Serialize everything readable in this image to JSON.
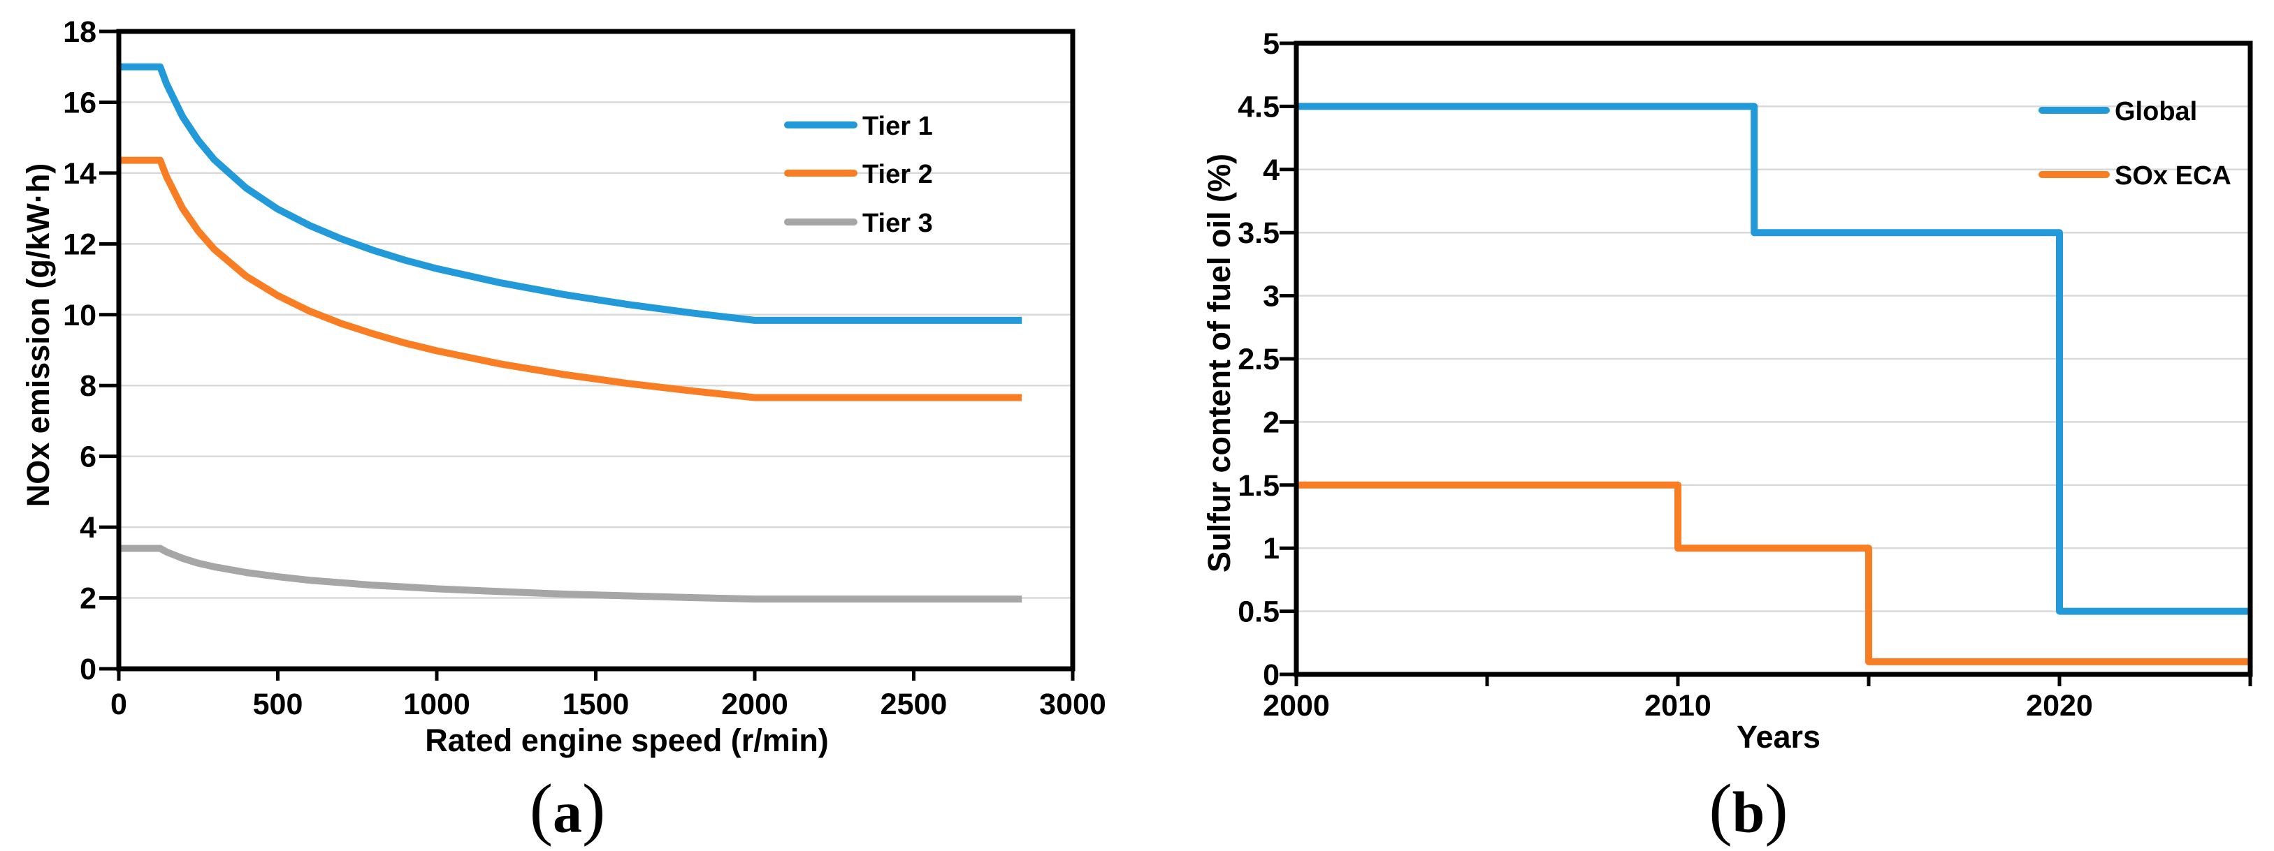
{
  "colors": {
    "blue": "#2299D8",
    "orange": "#F97E23",
    "gray": "#A6A6A6",
    "grid": "#D9D9D9",
    "axis": "#000000"
  },
  "panel_a": {
    "caption_open": "(",
    "caption_letter": "a",
    "caption_close": ")"
  },
  "panel_b": {
    "caption_open": "(",
    "caption_letter": "b",
    "caption_close": ")"
  },
  "chart_data": [
    {
      "id": "nox-emission-tiers",
      "type": "line",
      "title": "",
      "xlabel": "Rated engine speed (r/min)",
      "ylabel": "NOx emission (g/kW·h)",
      "xlim": [
        0,
        3000
      ],
      "ylim": [
        0,
        18
      ],
      "xticks": [
        0,
        500,
        1000,
        1500,
        2000,
        2500,
        3000
      ],
      "yticks": [
        0,
        2,
        4,
        6,
        8,
        10,
        12,
        14,
        16,
        18
      ],
      "grid": "horizontal",
      "legend_position": "inside upper right",
      "series": [
        {
          "name": "Tier 1",
          "color": "#2299D8",
          "points": [
            [
              0,
              17
            ],
            [
              130,
              17
            ],
            [
              150,
              16.52
            ],
            [
              200,
              15.6
            ],
            [
              250,
              14.92
            ],
            [
              300,
              14.38
            ],
            [
              400,
              13.58
            ],
            [
              500,
              12.98
            ],
            [
              600,
              12.52
            ],
            [
              700,
              12.14
            ],
            [
              800,
              11.82
            ],
            [
              900,
              11.54
            ],
            [
              1000,
              11.3
            ],
            [
              1200,
              10.9
            ],
            [
              1400,
              10.57
            ],
            [
              1600,
              10.29
            ],
            [
              1800,
              10.05
            ],
            [
              2000,
              9.84
            ],
            [
              2840,
              9.84
            ]
          ]
        },
        {
          "name": "Tier 2",
          "color": "#F97E23",
          "points": [
            [
              0,
              14.36
            ],
            [
              130,
              14.36
            ],
            [
              150,
              13.9
            ],
            [
              200,
              13.01
            ],
            [
              250,
              12.36
            ],
            [
              300,
              11.85
            ],
            [
              400,
              11.09
            ],
            [
              500,
              10.54
            ],
            [
              600,
              10.1
            ],
            [
              700,
              9.75
            ],
            [
              800,
              9.46
            ],
            [
              900,
              9.2
            ],
            [
              1000,
              8.98
            ],
            [
              1200,
              8.61
            ],
            [
              1400,
              8.31
            ],
            [
              1600,
              8.06
            ],
            [
              1800,
              7.85
            ],
            [
              2000,
              7.66
            ],
            [
              2840,
              7.66
            ]
          ]
        },
        {
          "name": "Tier 3",
          "color": "#A6A6A6",
          "points": [
            [
              0,
              3.4
            ],
            [
              130,
              3.4
            ],
            [
              150,
              3.3
            ],
            [
              200,
              3.12
            ],
            [
              250,
              2.98
            ],
            [
              300,
              2.88
            ],
            [
              400,
              2.72
            ],
            [
              500,
              2.6
            ],
            [
              600,
              2.5
            ],
            [
              700,
              2.43
            ],
            [
              800,
              2.36
            ],
            [
              900,
              2.31
            ],
            [
              1000,
              2.26
            ],
            [
              1200,
              2.18
            ],
            [
              1400,
              2.11
            ],
            [
              1600,
              2.06
            ],
            [
              1800,
              2.01
            ],
            [
              2000,
              1.97
            ],
            [
              2840,
              1.97
            ]
          ]
        }
      ]
    },
    {
      "id": "sulfur-content-limits",
      "type": "line",
      "title": "",
      "xlabel": "Years",
      "ylabel": "Sulfur content of fuel oil (%)",
      "xlim": [
        2000,
        2025
      ],
      "ylim": [
        0,
        5
      ],
      "xticks": [
        2000,
        2005,
        2010,
        2015,
        2020,
        2025
      ],
      "xtick_labels": [
        2000,
        2010,
        2020
      ],
      "yticks": [
        0,
        0.5,
        1,
        1.5,
        2,
        2.5,
        3,
        3.5,
        4,
        4.5,
        5
      ],
      "grid": "horizontal",
      "legend_position": "inside upper right",
      "series": [
        {
          "name": "Global",
          "color": "#2299D8",
          "points": [
            [
              2000,
              4.5
            ],
            [
              2012,
              4.5
            ],
            [
              2012,
              3.5
            ],
            [
              2020,
              3.5
            ],
            [
              2020,
              0.5
            ],
            [
              2025,
              0.5
            ]
          ]
        },
        {
          "name": "SOx ECA",
          "color": "#F97E23",
          "points": [
            [
              2000,
              1.5
            ],
            [
              2010,
              1.5
            ],
            [
              2010,
              1.0
            ],
            [
              2015,
              1.0
            ],
            [
              2015,
              0.1
            ],
            [
              2025,
              0.1
            ]
          ]
        }
      ]
    }
  ]
}
